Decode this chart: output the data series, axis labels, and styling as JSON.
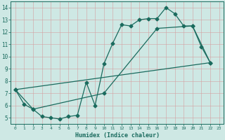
{
  "xlabel": "Humidex (Indice chaleur)",
  "bg_color": "#cee8e4",
  "line_color": "#1a6b5e",
  "grid_color_major": "#d4a0a0",
  "grid_color_minor": "#d4c0c0",
  "ylim": [
    4.5,
    14.5
  ],
  "xlim": [
    -0.5,
    23.5
  ],
  "yticks": [
    5,
    6,
    7,
    8,
    9,
    10,
    11,
    12,
    13,
    14
  ],
  "xticks": [
    0,
    1,
    2,
    3,
    4,
    5,
    6,
    7,
    8,
    9,
    10,
    11,
    12,
    13,
    14,
    15,
    16,
    17,
    18,
    19,
    20,
    21,
    22,
    23
  ],
  "line1_x": [
    0,
    1,
    2,
    3,
    4,
    5,
    6,
    7,
    8,
    9,
    10,
    11,
    12,
    13,
    14,
    15,
    16,
    17,
    18,
    19,
    20,
    21,
    22
  ],
  "line1_y": [
    7.3,
    6.1,
    5.7,
    5.1,
    5.0,
    4.9,
    5.1,
    5.2,
    7.9,
    6.0,
    9.4,
    11.1,
    12.6,
    12.5,
    13.0,
    13.1,
    13.1,
    14.0,
    13.5,
    12.5,
    12.5,
    10.8,
    9.5
  ],
  "line2_x": [
    0,
    2,
    10,
    16,
    20,
    22
  ],
  "line2_y": [
    7.3,
    5.7,
    7.0,
    12.3,
    12.5,
    9.5
  ],
  "line3_x": [
    0,
    22
  ],
  "line3_y": [
    7.3,
    9.5
  ],
  "marker": "D",
  "markersize": 2.5,
  "linewidth": 0.9
}
